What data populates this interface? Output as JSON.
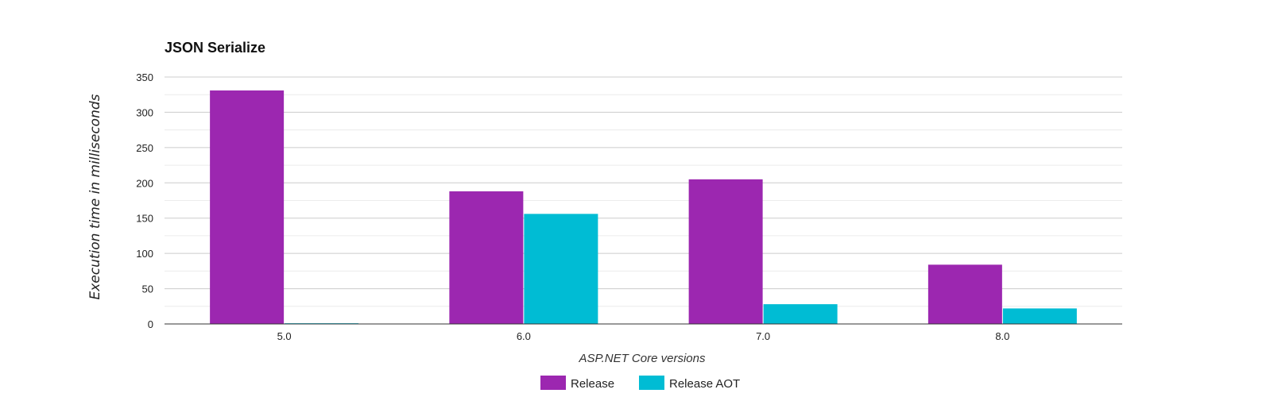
{
  "chart_data": {
    "type": "bar",
    "title": "JSON Serialize",
    "xlabel": "ASP.NET Core versions",
    "ylabel": "Execution time in milliseconds",
    "categories": [
      "5.0",
      "6.0",
      "7.0",
      "8.0"
    ],
    "series": [
      {
        "name": "Release",
        "color": "#9c27b0",
        "values": [
          331,
          188,
          205,
          84
        ]
      },
      {
        "name": "Release AOT",
        "color": "#00bcd4",
        "values": [
          1,
          156,
          28,
          22
        ]
      }
    ],
    "ylim": [
      0,
      350
    ],
    "yticks": [
      0,
      50,
      100,
      150,
      200,
      250,
      300,
      350
    ],
    "grid": true,
    "legend_position": "bottom"
  }
}
